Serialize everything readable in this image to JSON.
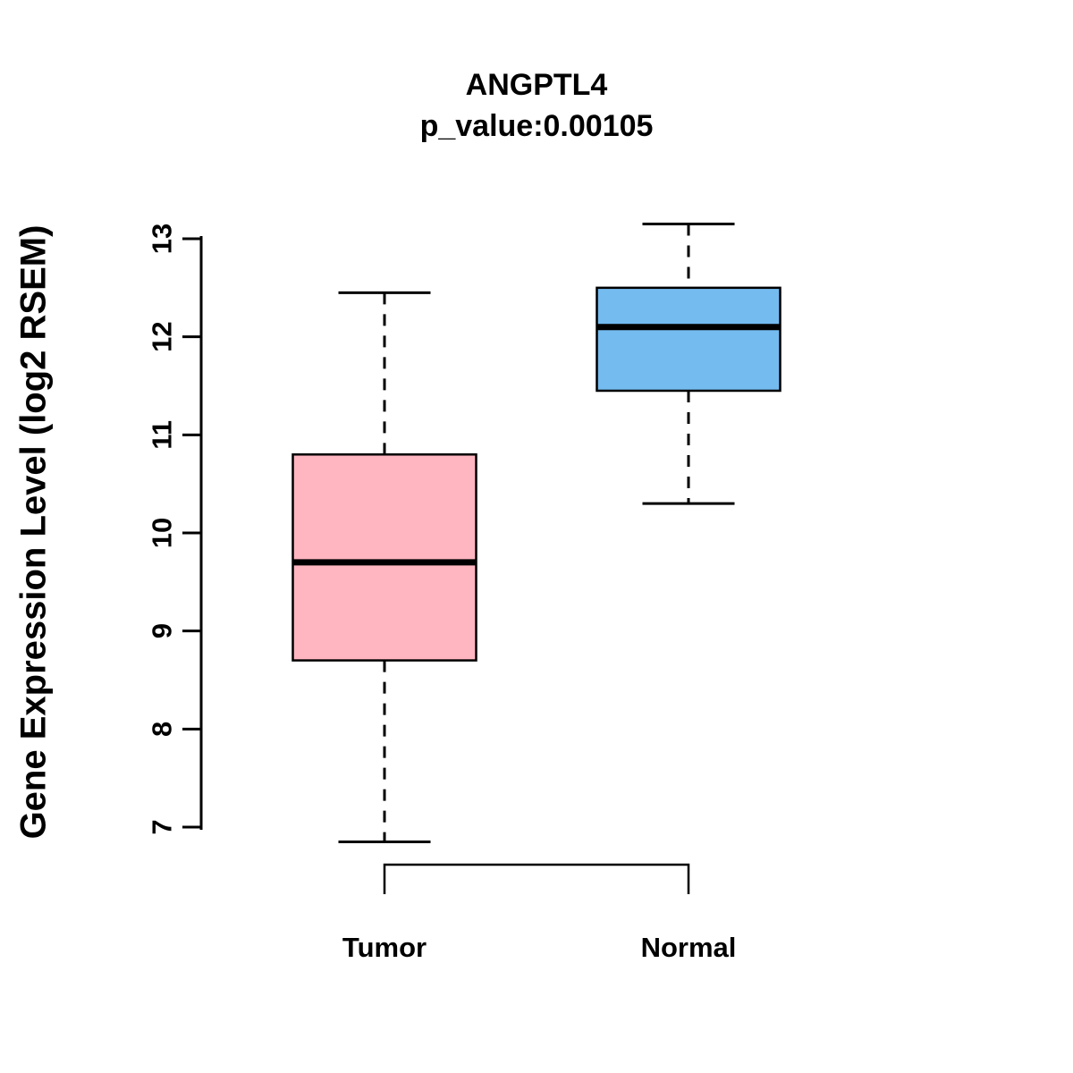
{
  "chart_data": {
    "type": "boxplot",
    "title": "ANGPTL4",
    "subtitle": "p_value:0.00105",
    "ylabel": "Gene Expression Level (log2 RSEM)",
    "xlabel": "",
    "categories": [
      "Tumor",
      "Normal"
    ],
    "yticks": [
      7,
      8,
      9,
      10,
      11,
      12,
      13
    ],
    "ylim": [
      6.8,
      13.2
    ],
    "grid": false,
    "legend": "none",
    "series": [
      {
        "name": "Tumor",
        "color": "#FFB6C1",
        "whisker_low": 6.85,
        "q1": 8.7,
        "median": 9.7,
        "q3": 10.8,
        "whisker_high": 12.45
      },
      {
        "name": "Normal",
        "color": "#74BBF0",
        "whisker_low": 10.3,
        "q1": 11.45,
        "median": 12.1,
        "q3": 12.5,
        "whisker_high": 13.15
      }
    ],
    "annotations": [
      {
        "type": "bracket",
        "between": [
          "Tumor",
          "Normal"
        ],
        "label": ""
      }
    ]
  }
}
